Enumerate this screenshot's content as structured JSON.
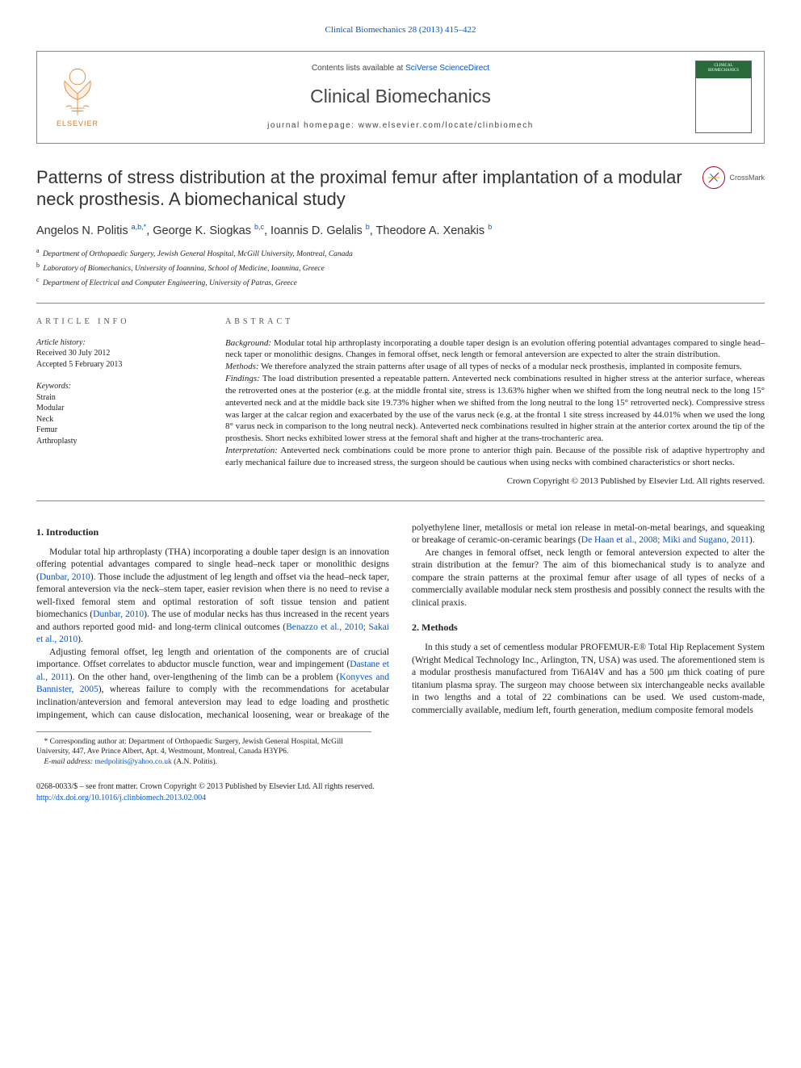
{
  "top_link": {
    "label": "Clinical Biomechanics 28 (2013) 415–422",
    "href": "#"
  },
  "masthead": {
    "contents_prefix": "Contents lists available at ",
    "contents_link": "SciVerse ScienceDirect",
    "journal": "Clinical Biomechanics",
    "homepage_prefix": "journal homepage: ",
    "homepage": "www.elsevier.com/locate/clinbiomech",
    "publisher": "ELSEVIER",
    "cover_label_line1": "CLINICAL",
    "cover_label_line2": "BIOMECHANICS"
  },
  "crossmark": {
    "label": "CrossMark"
  },
  "article": {
    "title": "Patterns of stress distribution at the proximal femur after implantation of a modular neck prosthesis. A biomechanical study",
    "authors_html": "Angelos N. Politis <sup>a,b,*</sup>, George K. Siogkas <sup>b,c</sup>, Ioannis D. Gelalis <sup>b</sup>, Theodore A. Xenakis <sup>b</sup>",
    "affiliations": [
      {
        "sup": "a",
        "text": "Department of Orthopaedic Surgery, Jewish General Hospital, McGill University, Montreal, Canada"
      },
      {
        "sup": "b",
        "text": "Laboratory of Biomechanics, University of Ioannina, School of Medicine, Ioannina, Greece"
      },
      {
        "sup": "c",
        "text": "Department of Electrical and Computer Engineering, University of Patras, Greece"
      }
    ]
  },
  "meta": {
    "info_head": "article info",
    "abs_head": "abstract",
    "history_label": "Article history:",
    "received": "Received 30 July 2012",
    "accepted": "Accepted 5 February 2013",
    "keywords_label": "Keywords:",
    "keywords": [
      "Strain",
      "Modular",
      "Neck",
      "Femur",
      "Arthroplasty"
    ]
  },
  "abstract": {
    "background_lead": "Background:",
    "background": " Modular total hip arthroplasty incorporating a double taper design is an evolution offering potential advantages compared to single head–neck taper or monolithic designs. Changes in femoral offset, neck length or femoral anteversion are expected to alter the strain distribution.",
    "methods_lead": "Methods:",
    "methods": " We therefore analyzed the strain patterns after usage of all types of necks of a modular neck prosthesis, implanted in composite femurs.",
    "findings_lead": "Findings:",
    "findings": " The load distribution presented a repeatable pattern. Anteverted neck combinations resulted in higher stress at the anterior surface, whereas the retroverted ones at the posterior (e.g. at the middle frontal site, stress is 13.63% higher when we shifted from the long neutral neck to the long 15° anteverted neck and at the middle back site 19.73% higher when we shifted from the long neutral to the long 15° retroverted neck). Compressive stress was larger at the calcar region and exacerbated by the use of the varus neck (e.g. at the frontal 1 site stress increased by 44.01% when we used the long 8° varus neck in comparison to the long neutral neck). Anteverted neck combinations resulted in higher strain at the anterior cortex around the tip of the prosthesis. Short necks exhibited lower stress at the femoral shaft and higher at the trans-trochanteric area.",
    "interpretation_lead": "Interpretation:",
    "interpretation": " Anteverted neck combinations could be more prone to anterior thigh pain. Because of the possible risk of adaptive hypertrophy and early mechanical failure due to increased stress, the surgeon should be cautious when using necks with combined characteristics or short necks.",
    "copyright": "Crown Copyright © 2013 Published by Elsevier Ltd. All rights reserved."
  },
  "body": {
    "intro_head": "1. Introduction",
    "intro_p1a": "Modular total hip arthroplasty (THA) incorporating a double taper design is an innovation offering potential advantages compared to single head–neck taper or monolithic designs (",
    "intro_p1_ref1": "Dunbar, 2010",
    "intro_p1b": "). Those include the adjustment of leg length and offset via the head–neck taper, femoral anteversion via the neck–stem taper, easier revision when there is no need to revise a well-fixed femoral stem and optimal restoration of soft tissue tension and patient biomechanics (",
    "intro_p1_ref2": "Dunbar, 2010",
    "intro_p1c": "). The use of modular necks has thus increased in the recent years and authors reported good mid- and long-term clinical outcomes (",
    "intro_p1_ref3": "Benazzo et al., 2010; Sakai et al., 2010",
    "intro_p1d": ").",
    "intro_p2a": "Adjusting femoral offset, leg length and orientation of the components are of crucial importance. Offset correlates to abductor muscle function, wear and impingement (",
    "intro_p2_ref1": "Dastane et al., 2011",
    "intro_p2b": "). On the other hand, over-lengthening of the limb can be a problem (",
    "intro_p2_ref2": "Konyves and Bannister, 2005",
    "intro_p2c": "), whereas failure to comply with the recommendations for acetabular inclination/anteversion and femoral anteversion may lead to edge loading and prosthetic impingement, which can cause dislocation, mechanical loosening, wear or breakage of the polyethylene liner, metallosis or metal ion release in metal-on-metal bearings, and squeaking or breakage of ceramic-on-ceramic bearings (",
    "intro_p2_ref3": "De Haan et al., 2008; Miki and Sugano, 2011",
    "intro_p2d": ").",
    "intro_p3": "Are changes in femoral offset, neck length or femoral anteversion expected to alter the strain distribution at the femur? The aim of this biomechanical study is to analyze and compare the strain patterns at the proximal femur after usage of all types of necks of a commercially available modular neck stem prosthesis and possibly connect the results with the clinical praxis.",
    "methods_head": "2. Methods",
    "methods_p1": "In this study a set of cementless modular PROFEMUR-E® Total Hip Replacement System (Wright Medical Technology Inc., Arlington, TN, USA) was used. The aforementioned stem is a modular prosthesis manufactured from Ti6Al4V and has a 500 μm thick coating of pure titanium plasma spray. The surgeon may choose between six interchangeable necks available in two lengths and a total of 22 combinations can be used. We used custom-made, commercially available, medium left, fourth generation, medium composite femoral models"
  },
  "footnote": {
    "star": "*",
    "corr_prefix": "Corresponding author at: ",
    "corr": "Department of Orthopaedic Surgery, Jewish General Hospital, McGill University, 447, Ave Prince Albert, Apt. 4, Westmount, Montreal, Canada H3YP6.",
    "email_lead": "E-mail address: ",
    "email": "medpolitis@yahoo.co.uk",
    "email_tail": " (A.N. Politis)."
  },
  "bottom": {
    "line1": "0268-0033/$ – see front matter. Crown Copyright © 2013 Published by Elsevier Ltd. All rights reserved.",
    "doi": "http://dx.doi.org/10.1016/j.clinbiomech.2013.02.004"
  },
  "colors": {
    "link": "#0055cc",
    "elsevier": "#e67817",
    "rule": "#888888",
    "cover_green": "#2a6a3a",
    "crossmark_ring": "#b00020"
  }
}
